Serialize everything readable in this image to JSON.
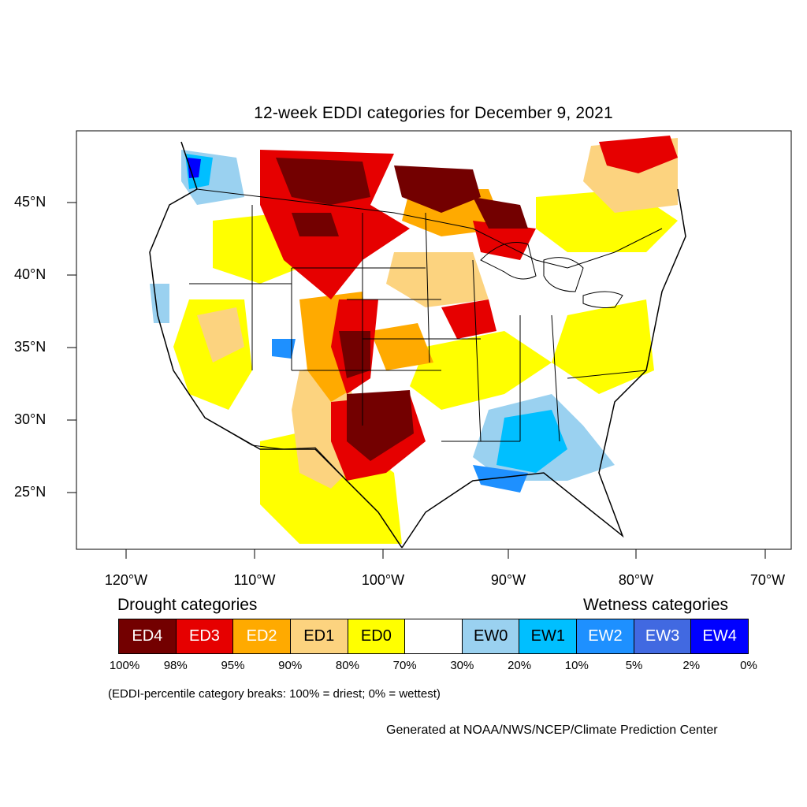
{
  "title": "12-week EDDI categories for December 9, 2021",
  "lat_labels": [
    "45°N",
    "40°N",
    "35°N",
    "30°N",
    "25°N"
  ],
  "lon_labels": [
    "120°W",
    "110°W",
    "100°W",
    "90°W",
    "80°W",
    "70°W"
  ],
  "legend": {
    "drought_heading": "Drought categories",
    "wetness_heading": "Wetness categories",
    "categories": [
      {
        "label": "ED4",
        "color": "#730000",
        "text_color": "#ffffff"
      },
      {
        "label": "ED3",
        "color": "#e60000",
        "text_color": "#ffffff"
      },
      {
        "label": "ED2",
        "color": "#ffaa00",
        "text_color": "#ffffff"
      },
      {
        "label": "ED1",
        "color": "#fcd37f",
        "text_color": "#000000"
      },
      {
        "label": "ED0",
        "color": "#ffff00",
        "text_color": "#000000"
      },
      {
        "label": "",
        "color": "#ffffff",
        "text_color": "#000000"
      },
      {
        "label": "EW0",
        "color": "#9ad1f0",
        "text_color": "#000000"
      },
      {
        "label": "EW1",
        "color": "#00bfff",
        "text_color": "#000000"
      },
      {
        "label": "EW2",
        "color": "#1e90ff",
        "text_color": "#ffffff"
      },
      {
        "label": "EW3",
        "color": "#4169e1",
        "text_color": "#ffffff"
      },
      {
        "label": "EW4",
        "color": "#0000ff",
        "text_color": "#ffffff"
      }
    ],
    "breaks": [
      "100%",
      "98%",
      "95%",
      "90%",
      "80%",
      "70%",
      "30%",
      "20%",
      "10%",
      "5%",
      "2%",
      "0%"
    ]
  },
  "footnote": "(EDDI-percentile category breaks: 100% = driest; 0% = wettest)",
  "credit": "Generated at NOAA/NWS/NCEP/Climate Prediction Center"
}
